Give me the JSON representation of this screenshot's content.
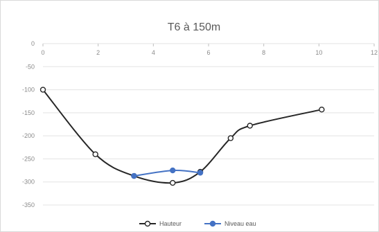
{
  "chart_data": {
    "type": "line",
    "title": "T6 à 150m",
    "xlabel": "",
    "ylabel": "",
    "xlim": [
      0,
      12
    ],
    "ylim": [
      -350,
      0
    ],
    "xticks": [
      0,
      2,
      4,
      6,
      8,
      10,
      12
    ],
    "yticks": [
      0,
      -50,
      -100,
      -150,
      -200,
      -250,
      -300,
      -350
    ],
    "x_tick_labels": [
      "0",
      "2",
      "4",
      "6",
      "8",
      "10",
      "12"
    ],
    "y_tick_labels": [
      "0",
      "-50",
      "-100",
      "-150",
      "-200",
      "-250",
      "-300",
      "-350"
    ],
    "grid": true,
    "smooth": true,
    "legend_position": "bottom",
    "series": [
      {
        "name": "Hauteur",
        "color": "#262626",
        "marker": "open-circle",
        "points": [
          {
            "x": 0,
            "y": -100
          },
          {
            "x": 1.9,
            "y": -240
          },
          {
            "x": 3.3,
            "y": -287
          },
          {
            "x": 4.7,
            "y": -302
          },
          {
            "x": 5.7,
            "y": -278
          },
          {
            "x": 6.8,
            "y": -205
          },
          {
            "x": 7.5,
            "y": -178
          },
          {
            "x": 10.1,
            "y": -143
          }
        ]
      },
      {
        "name": "Niveau eau",
        "color": "#4472c4",
        "marker": "filled-circle",
        "points": [
          {
            "x": 3.3,
            "y": -287
          },
          {
            "x": 4.7,
            "y": -275
          },
          {
            "x": 5.7,
            "y": -280
          }
        ]
      }
    ]
  }
}
